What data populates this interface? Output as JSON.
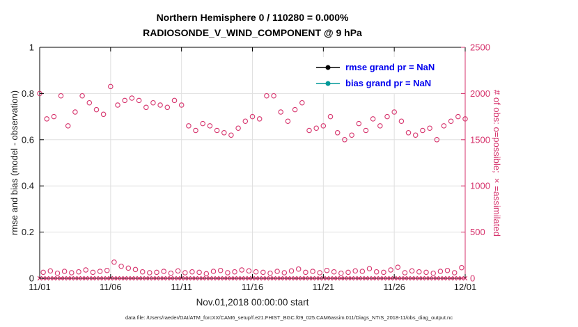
{
  "colors": {
    "obs_pink": "#d6336c",
    "grid": "#e0e0e0",
    "axis": "#000000",
    "tick_text": "#1a1a1a"
  },
  "footer": {
    "data_file": "data file: /Users/raeder/DAI/ATM_forcXX/CAM6_setup/f.e21.FHIST_BGC.f09_025.CAM6assim.011/Diags_NTrS_2018-11/obs_diag_output.nc"
  },
  "chart_data": {
    "type": "scatter",
    "title_line1": "Northern Hemisphere 0 / 110280 = 0.000%",
    "title_line2": "RADIOSONDE_V_WIND_COMPONENT @ 9 hPa",
    "xlabel": "Nov.01,2018 00:00:00 start",
    "ylabel_left": "rmse and bias (model - observation)",
    "ylabel_right": "# of obs: o=possible; ×=assimilated",
    "legend": {
      "rmse_label": "rmse grand pr = NaN",
      "bias_label": "bias grand pr = NaN",
      "rmse_color": "#000000",
      "bias_color": "#009999",
      "text_color": "#0000ee",
      "position": "upper-right-inside"
    },
    "grid": true,
    "x_range": [
      0,
      30
    ],
    "ylim_left": [
      0,
      1
    ],
    "ylim_right": [
      0,
      2500
    ],
    "x_ticks": {
      "days": [
        0,
        5,
        10,
        15,
        20,
        25,
        30
      ],
      "labels": [
        "11/01",
        "11/06",
        "11/11",
        "11/16",
        "11/21",
        "11/26",
        "12/01"
      ]
    },
    "y_left": {
      "values": [
        0,
        0.2,
        0.4,
        0.6,
        0.8,
        1
      ],
      "labels": [
        "0",
        "0.2",
        "0.4",
        "0.6",
        "0.8",
        "1"
      ]
    },
    "y_right": {
      "values": [
        0,
        500,
        1000,
        1500,
        2000,
        2500
      ],
      "labels": [
        "0",
        "500",
        "1000",
        "1500",
        "2000",
        "2500"
      ]
    },
    "series": [
      {
        "name": "possible-synoptic",
        "marker": "o",
        "axis": "right",
        "color": "#d6336c",
        "x_start": 0,
        "x_step": 0.5,
        "y": [
          2000,
          1725,
          1750,
          1975,
          1650,
          1800,
          1975,
          1900,
          1825,
          1775,
          2075,
          1875,
          1925,
          1950,
          1925,
          1850,
          1900,
          1875,
          1850,
          1925,
          1875,
          1650,
          1600,
          1675,
          1650,
          1600,
          1575,
          1550,
          1625,
          1700,
          1750,
          1725,
          1975,
          1975,
          1800,
          1700,
          1825,
          1900,
          1600,
          1625,
          1650,
          1750,
          1575,
          1500,
          1550,
          1675,
          1600,
          1725,
          1650,
          1750,
          1800,
          1700,
          1575,
          1550,
          1600,
          1625,
          1500,
          1650,
          1700,
          1750,
          1725
        ]
      },
      {
        "name": "possible-offsynoptic",
        "marker": "o",
        "axis": "right",
        "color": "#d6336c",
        "x_start": 0.25,
        "x_step": 0.5,
        "y": [
          65,
          80,
          55,
          75,
          60,
          70,
          90,
          65,
          75,
          85,
          175,
          130,
          110,
          95,
          70,
          60,
          65,
          75,
          55,
          80,
          60,
          70,
          65,
          50,
          75,
          85,
          60,
          70,
          90,
          80,
          70,
          65,
          55,
          75,
          60,
          80,
          100,
          65,
          75,
          60,
          85,
          70,
          55,
          65,
          80,
          75,
          105,
          70,
          65,
          90,
          120,
          60,
          80,
          70,
          65,
          55,
          75,
          85,
          60,
          115
        ]
      },
      {
        "name": "assimilated",
        "marker": "x",
        "axis": "right",
        "color": "#d6336c",
        "x_start": 0,
        "x_step": 0.25,
        "count": 121,
        "y_constant": 0
      }
    ]
  }
}
